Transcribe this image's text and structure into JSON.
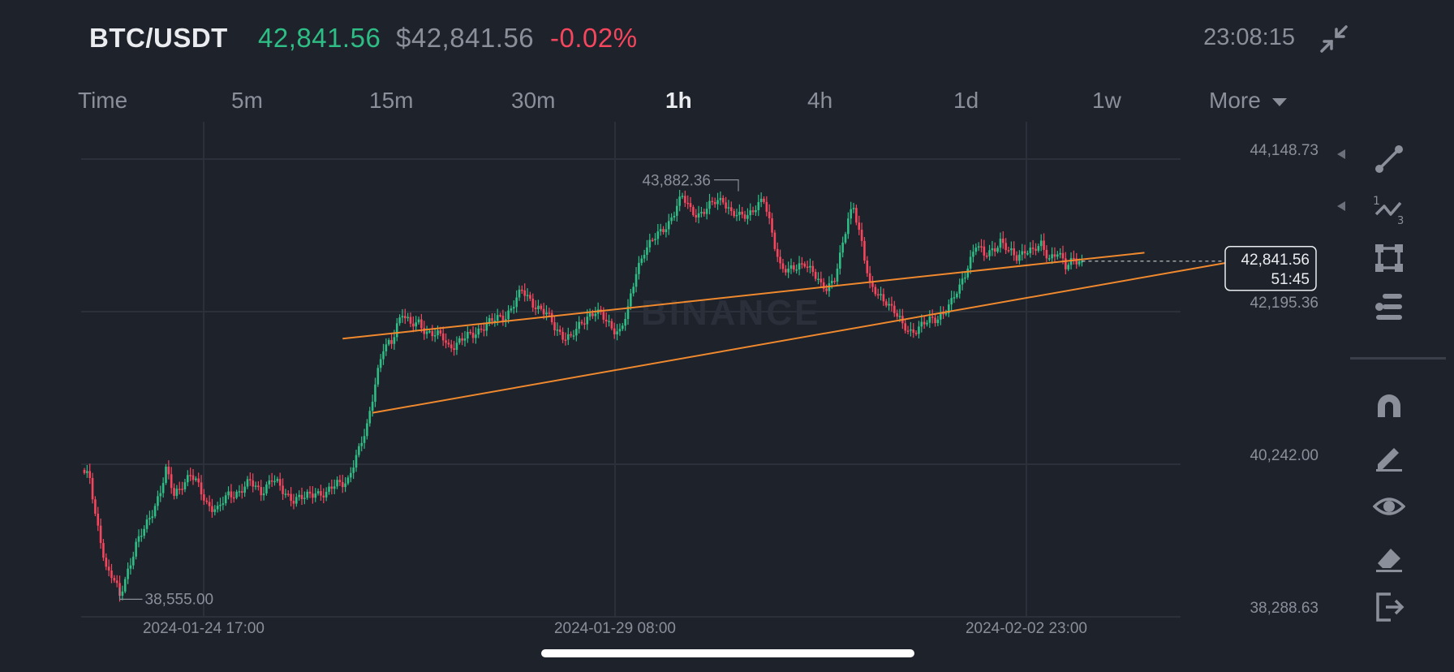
{
  "header": {
    "symbol": "BTC/USDT",
    "last_price": "42,841.56",
    "usd_price": "$42,841.56",
    "change_pct": "-0.02%",
    "clock": "23:08:15"
  },
  "timeframes": [
    "Time",
    "5m",
    "15m",
    "30m",
    "1h",
    "4h",
    "1d",
    "1w",
    "More"
  ],
  "active_timeframe": "1h",
  "colors": {
    "up": "#2ebd85",
    "down": "#f6465d",
    "trendline": "#f0892e",
    "background": "#1e222b"
  },
  "tools": [
    "trendline-icon",
    "wave-count-icon",
    "rectangle-icon",
    "fib-lines-icon",
    "magnet-icon",
    "pencil-icon",
    "eye-icon",
    "eraser-icon",
    "exit-icon"
  ],
  "chart_data": {
    "type": "candlestick",
    "interval": "1h",
    "price_axis": {
      "min": 38288.63,
      "max": 44148.73,
      "ticks": [
        "44,148.73",
        "42,195.36",
        "40,242.00",
        "38,288.63"
      ]
    },
    "time_labels": [
      "2024-01-24 17:00",
      "2024-01-29 08:00",
      "2024-02-02 23:00"
    ],
    "high_marker": "43,882.36",
    "low_marker": "38,555.00",
    "current_price_label": "42,841.56",
    "countdown_label": "51:45",
    "watermark": "BINANCE",
    "anchors": [
      [
        0,
        40100
      ],
      [
        2,
        40050
      ],
      [
        4,
        39600
      ],
      [
        6,
        39300
      ],
      [
        8,
        38900
      ],
      [
        10,
        38800
      ],
      [
        12,
        38650
      ],
      [
        13,
        38555
      ],
      [
        16,
        38900
      ],
      [
        19,
        39200
      ],
      [
        22,
        39400
      ],
      [
        25,
        39650
      ],
      [
        28,
        39900
      ],
      [
        30,
        40150
      ],
      [
        33,
        39850
      ],
      [
        36,
        40000
      ],
      [
        39,
        40100
      ],
      [
        42,
        39950
      ],
      [
        45,
        39750
      ],
      [
        49,
        39650
      ],
      [
        53,
        39850
      ],
      [
        57,
        39900
      ],
      [
        61,
        40000
      ],
      [
        65,
        39900
      ],
      [
        69,
        40050
      ],
      [
        73,
        39900
      ],
      [
        77,
        39800
      ],
      [
        81,
        39800
      ],
      [
        85,
        39900
      ],
      [
        89,
        39850
      ],
      [
        93,
        40000
      ],
      [
        97,
        40050
      ],
      [
        101,
        40400
      ],
      [
        104,
        40750
      ],
      [
        107,
        41300
      ],
      [
        110,
        41700
      ],
      [
        113,
        41800
      ],
      [
        115,
        42050
      ],
      [
        117,
        42200
      ],
      [
        120,
        42000
      ],
      [
        123,
        42050
      ],
      [
        126,
        41950
      ],
      [
        129,
        41900
      ],
      [
        132,
        41850
      ],
      [
        134,
        41750
      ],
      [
        137,
        41800
      ],
      [
        140,
        41850
      ],
      [
        143,
        41900
      ],
      [
        146,
        42000
      ],
      [
        149,
        42050
      ],
      [
        152,
        42100
      ],
      [
        155,
        42150
      ],
      [
        158,
        42300
      ],
      [
        161,
        42450
      ],
      [
        164,
        42350
      ],
      [
        167,
        42250
      ],
      [
        170,
        42150
      ],
      [
        173,
        42000
      ],
      [
        176,
        41900
      ],
      [
        179,
        41850
      ],
      [
        182,
        42000
      ],
      [
        185,
        42150
      ],
      [
        188,
        42200
      ],
      [
        191,
        42100
      ],
      [
        194,
        42000
      ],
      [
        197,
        41950
      ],
      [
        200,
        42200
      ],
      [
        203,
        42700
      ],
      [
        206,
        43000
      ],
      [
        209,
        43100
      ],
      [
        212,
        43200
      ],
      [
        215,
        43350
      ],
      [
        218,
        43550
      ],
      [
        220,
        43650
      ],
      [
        223,
        43500
      ],
      [
        226,
        43450
      ],
      [
        229,
        43500
      ],
      [
        232,
        43600
      ],
      [
        235,
        43650
      ],
      [
        238,
        43450
      ],
      [
        241,
        43400
      ],
      [
        244,
        43450
      ],
      [
        247,
        43550
      ],
      [
        250,
        43600
      ],
      [
        253,
        43200
      ],
      [
        256,
        42800
      ],
      [
        259,
        42700
      ],
      [
        262,
        42750
      ],
      [
        265,
        42850
      ],
      [
        268,
        42700
      ],
      [
        271,
        42500
      ],
      [
        273,
        42500
      ],
      [
        276,
        42650
      ],
      [
        278,
        42900
      ],
      [
        281,
        43350
      ],
      [
        283,
        43550
      ],
      [
        286,
        43100
      ],
      [
        289,
        42500
      ],
      [
        292,
        42400
      ],
      [
        295,
        42350
      ],
      [
        298,
        42200
      ],
      [
        301,
        42000
      ],
      [
        304,
        41950
      ],
      [
        307,
        42000
      ],
      [
        310,
        42050
      ],
      [
        313,
        42100
      ],
      [
        316,
        42200
      ],
      [
        319,
        42300
      ],
      [
        322,
        42500
      ],
      [
        325,
        42800
      ],
      [
        328,
        43050
      ],
      [
        331,
        42900
      ],
      [
        334,
        43000
      ],
      [
        337,
        43100
      ],
      [
        340,
        42950
      ],
      [
        343,
        42900
      ],
      [
        346,
        43000
      ],
      [
        349,
        42950
      ],
      [
        352,
        43050
      ],
      [
        355,
        42900
      ],
      [
        358,
        42950
      ],
      [
        361,
        42750
      ],
      [
        364,
        42900
      ],
      [
        367,
        42841.56
      ]
    ],
    "trendlines": [
      {
        "from": [
          95,
          41850
        ],
        "to": [
          390,
          42950
        ]
      },
      {
        "from": [
          106,
          40900
        ],
        "to": [
          420,
          42820
        ]
      }
    ]
  }
}
